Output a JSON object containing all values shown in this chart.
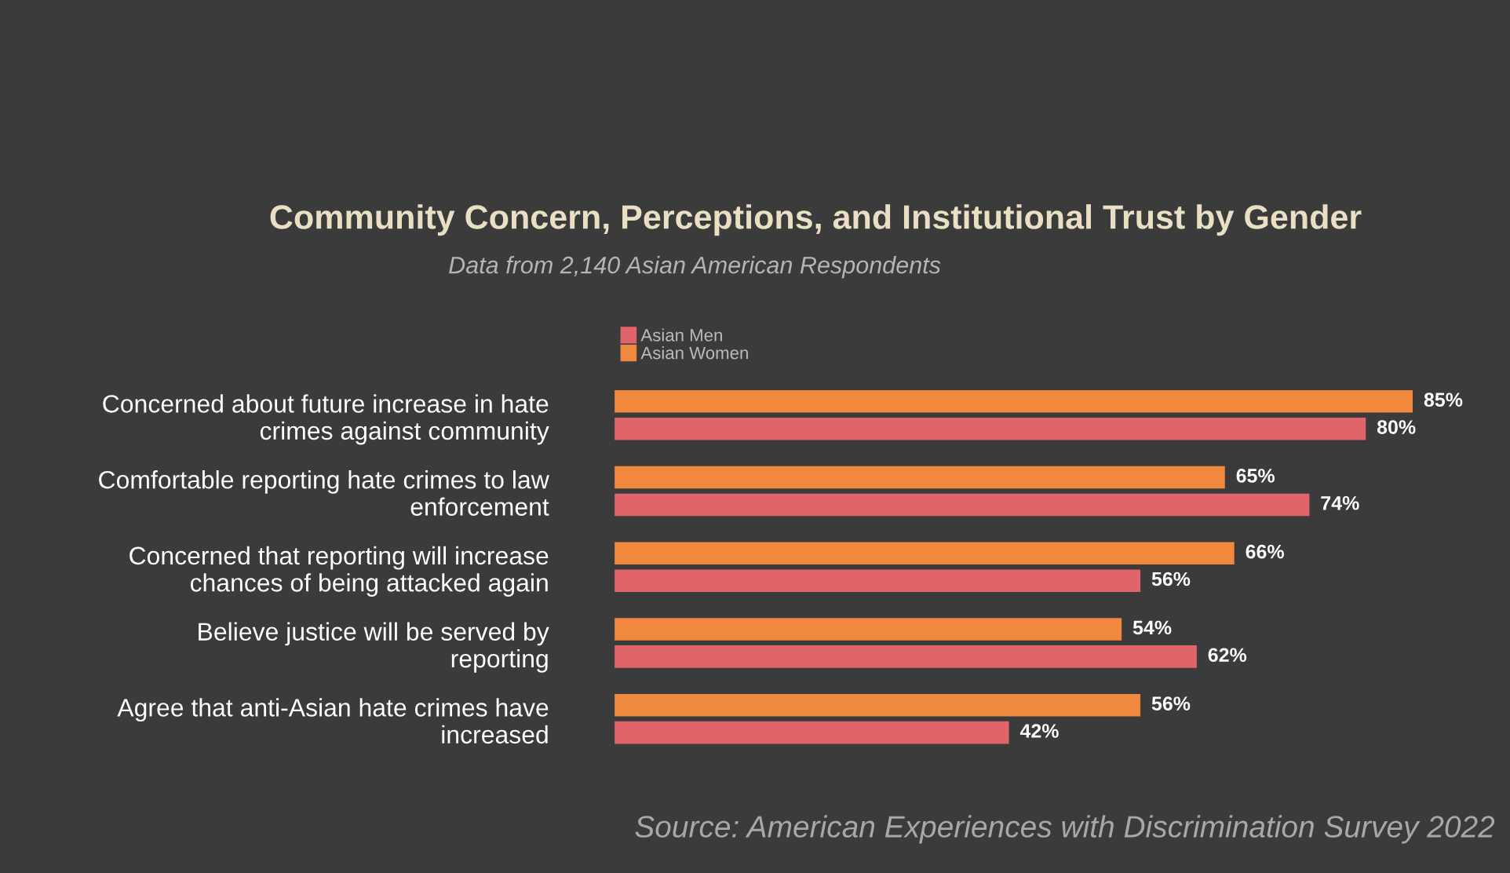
{
  "chart_data": {
    "type": "bar",
    "orientation": "horizontal",
    "title": "Community Concern, Perceptions, and Institutional Trust by Gender",
    "subtitle": "Data from 2,140 Asian American Respondents",
    "categories": [
      "Concerned about future increase in hate\ncrimes against community",
      "Comfortable reporting hate crimes to law\nenforcement",
      "Concerned that reporting will increase\nchances of being attacked again",
      "Believe justice will be served by\nreporting",
      "Agree that anti-Asian hate crimes have\nincreased"
    ],
    "series": [
      {
        "name": "Asian Men",
        "color": "#e0656a",
        "values": [
          80,
          74,
          56,
          62,
          42
        ],
        "value_labels": [
          "80%",
          "74%",
          "56%",
          "62%",
          "42%"
        ]
      },
      {
        "name": "Asian Women",
        "color": "#f0883e",
        "values": [
          85,
          65,
          66,
          54,
          56
        ],
        "value_labels": [
          "85%",
          "65%",
          "66%",
          "54%",
          "56%"
        ]
      }
    ],
    "legend": "top left",
    "grid": false,
    "annotations": [
      "Source: American Experiences with Discrimination Survey 2022"
    ]
  }
}
